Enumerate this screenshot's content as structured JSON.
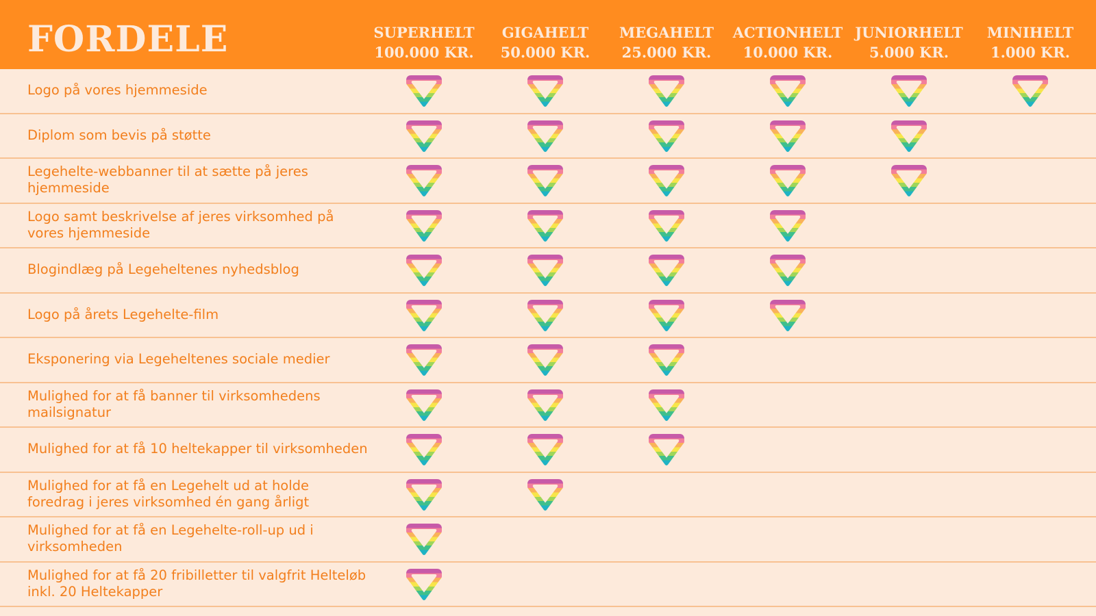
{
  "header": {
    "title": "FORDELE",
    "tiers": [
      {
        "name": "SUPERHELT",
        "price": "100.000 KR."
      },
      {
        "name": "GIGAHELT",
        "price": "50.000 KR."
      },
      {
        "name": "MEGAHELT",
        "price": "25.000 KR."
      },
      {
        "name": "ACTIONHELT",
        "price": "10.000 KR."
      },
      {
        "name": "JUNIORHELT",
        "price": "5.000 KR."
      },
      {
        "name": "MINIHELT",
        "price": "1.000 KR."
      }
    ]
  },
  "colors": {
    "header_bg": "#ff8c1f",
    "page_bg": "#fdeadb",
    "text_orange": "#f27f1d",
    "gem_stripes": [
      "#c75aa8",
      "#f37f9b",
      "#f9b25a",
      "#f7e54a",
      "#9fd55a",
      "#3fbf8c",
      "#1fb3c4"
    ]
  },
  "benefit_icon": "rainbow-diamond-icon",
  "benefits": [
    {
      "label": "Logo på vores hjemmeside",
      "tiers": [
        true,
        true,
        true,
        true,
        true,
        true
      ]
    },
    {
      "label": "Diplom som bevis på støtte",
      "tiers": [
        true,
        true,
        true,
        true,
        true,
        false
      ]
    },
    {
      "label": "Legehelte-webbanner til at sætte på jeres hjemmeside",
      "tiers": [
        true,
        true,
        true,
        true,
        true,
        false
      ]
    },
    {
      "label": "Logo samt beskrivelse af jeres virksomhed på vores hjemmeside",
      "tiers": [
        true,
        true,
        true,
        true,
        false,
        false
      ]
    },
    {
      "label": "Blogindlæg på Legeheltenes nyhedsblog",
      "tiers": [
        true,
        true,
        true,
        true,
        false,
        false
      ]
    },
    {
      "label": "Logo på årets Legehelte-film",
      "tiers": [
        true,
        true,
        true,
        true,
        false,
        false
      ]
    },
    {
      "label": "Eksponering via Legeheltenes sociale medier",
      "tiers": [
        true,
        true,
        true,
        false,
        false,
        false
      ]
    },
    {
      "label": "Mulighed for at få banner til virksomhedens mailsignatur",
      "tiers": [
        true,
        true,
        true,
        false,
        false,
        false
      ]
    },
    {
      "label": "Mulighed for at få 10 heltekapper til virksomheden",
      "tiers": [
        true,
        true,
        true,
        false,
        false,
        false
      ]
    },
    {
      "label": "Mulighed for at få en Legehelt ud at holde foredrag i jeres virksomhed én gang årligt",
      "tiers": [
        true,
        true,
        false,
        false,
        false,
        false
      ]
    },
    {
      "label": "Mulighed for at få en Legehelte-roll-up ud i virksomheden",
      "tiers": [
        true,
        false,
        false,
        false,
        false,
        false
      ]
    },
    {
      "label": "Mulighed for at få 20 fribilletter til valgfrit Helteløb inkl. 20 Heltekapper",
      "tiers": [
        true,
        false,
        false,
        false,
        false,
        false
      ]
    }
  ]
}
